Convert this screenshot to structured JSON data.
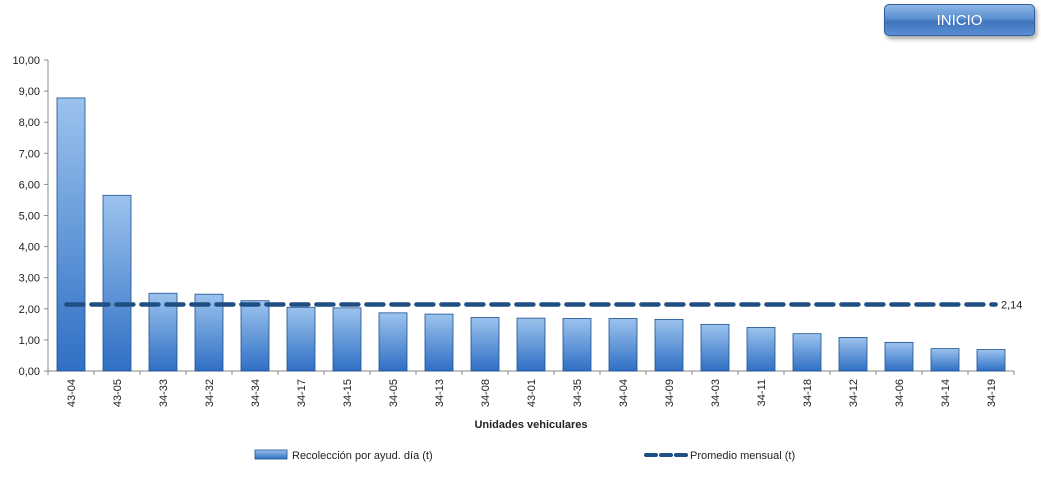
{
  "button": {
    "label": "INICIO"
  },
  "colors": {
    "bar_top": "#9cc3ee",
    "bar_bottom": "#2f6fc4",
    "bar_edge": "#1f4f8f",
    "avg_line": "#1f4e82",
    "axis": "#8a8a8a",
    "text": "#222222"
  },
  "chart_data": {
    "type": "bar",
    "xlabel": "Unidades vehiculares",
    "ylabel": "",
    "ylim": [
      0,
      10
    ],
    "ystep": 1,
    "ytick_labels": [
      "0,00",
      "1,00",
      "2,00",
      "3,00",
      "4,00",
      "5,00",
      "6,00",
      "7,00",
      "8,00",
      "9,00",
      "10,00"
    ],
    "categories": [
      "43-04",
      "43-05",
      "34-33",
      "34-32",
      "34-34",
      "34-17",
      "34-15",
      "34-05",
      "34-13",
      "34-08",
      "43-01",
      "34-35",
      "34-04",
      "34-09",
      "34-03",
      "34-11",
      "34-18",
      "34-12",
      "34-06",
      "34-14",
      "34-19"
    ],
    "series": [
      {
        "name": "Recolección por ayud. día (t)",
        "type": "bar",
        "values": [
          8.78,
          5.65,
          2.5,
          2.47,
          2.26,
          2.05,
          2.03,
          1.87,
          1.83,
          1.72,
          1.7,
          1.69,
          1.69,
          1.66,
          1.5,
          1.4,
          1.2,
          1.08,
          0.92,
          0.72,
          0.69
        ]
      },
      {
        "name": "Promedio mensual (t)",
        "type": "line",
        "style": "dashed",
        "value": 2.14,
        "value_label": "2,14"
      }
    ],
    "legend_position": "bottom",
    "grid": false
  }
}
